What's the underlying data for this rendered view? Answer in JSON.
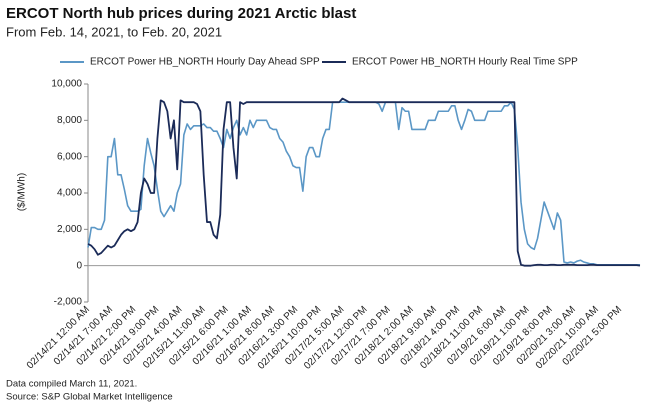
{
  "chart_data": {
    "type": "line",
    "title": "ERCOT North hub prices during 2021 Arctic blast",
    "subtitle": "From Feb. 14, 2021, to Feb. 20, 2021",
    "y_label": "($/MWh)",
    "notes": [
      "Data compiled March 11, 2021.",
      "Source: S&P Global Market Intelligence"
    ],
    "legend": "top",
    "grid": false,
    "ylim": [
      -2000,
      10000
    ],
    "yticks": [
      {
        "value": -2000,
        "label": "-2,000"
      },
      0,
      {
        "value": 2000,
        "label": "2,000"
      },
      {
        "value": 4000,
        "label": "4,000"
      },
      {
        "value": 6000,
        "label": "6,000"
      },
      {
        "value": 8000,
        "label": "8,000"
      },
      {
        "value": 10000,
        "label": "10,000"
      }
    ],
    "categories": [
      "02/14/21 12:00 AM",
      null,
      null,
      null,
      null,
      null,
      null,
      "02/14/21 7:00 AM",
      null,
      null,
      null,
      null,
      null,
      null,
      "02/14/21 2:00 PM",
      null,
      null,
      null,
      null,
      null,
      null,
      "02/14/21 9:00 PM",
      null,
      null,
      null,
      null,
      null,
      null,
      "02/15/21 4:00 AM",
      null,
      null,
      null,
      null,
      null,
      null,
      "02/15/21 11:00 AM",
      null,
      null,
      null,
      null,
      null,
      null,
      "02/15/21 6:00 PM",
      null,
      null,
      null,
      null,
      null,
      null,
      "02/16/21 1:00 AM",
      null,
      null,
      null,
      null,
      null,
      null,
      "02/16/21 8:00 AM",
      null,
      null,
      null,
      null,
      null,
      null,
      "02/16/21 3:00 PM",
      null,
      null,
      null,
      null,
      null,
      null,
      "02/16/21 10:00 PM",
      null,
      null,
      null,
      null,
      null,
      null,
      "02/17/21 5:00 AM",
      null,
      null,
      null,
      null,
      null,
      null,
      "02/17/21 12:00 PM",
      null,
      null,
      null,
      null,
      null,
      null,
      "02/17/21 7:00 PM",
      null,
      null,
      null,
      null,
      null,
      null,
      "02/18/21 2:00 AM",
      null,
      null,
      null,
      null,
      null,
      null,
      "02/18/21 9:00 AM",
      null,
      null,
      null,
      null,
      null,
      null,
      "02/18/21 4:00 PM",
      null,
      null,
      null,
      null,
      null,
      null,
      "02/18/21 11:00 PM",
      null,
      null,
      null,
      null,
      null,
      null,
      "02/19/21 6:00 AM",
      null,
      null,
      null,
      null,
      null,
      null,
      "02/19/21 1:00 PM",
      null,
      null,
      null,
      null,
      null,
      null,
      "02/19/21 8:00 PM",
      null,
      null,
      null,
      null,
      null,
      null,
      "02/20/21 3:00 AM",
      null,
      null,
      null,
      null,
      null,
      null,
      "02/20/21 10:00 AM",
      null,
      null,
      null,
      null,
      null,
      null,
      "02/20/21 5:00 PM",
      null,
      null,
      null,
      null,
      null,
      null
    ],
    "series": [
      {
        "name": "ERCOT Power HB_NORTH Hourly Day Ahead SPP",
        "color": "#5b97c6",
        "values": [
          1000,
          2100,
          2100,
          2000,
          2000,
          2500,
          6000,
          6000,
          7000,
          5000,
          5000,
          4200,
          3300,
          3000,
          3000,
          3000,
          3100,
          5500,
          7000,
          6200,
          5500,
          4200,
          3000,
          2700,
          3000,
          3300,
          3000,
          4000,
          4500,
          7200,
          7800,
          7500,
          7700,
          7700,
          7700,
          7800,
          7600,
          7600,
          7400,
          7400,
          7000,
          6500,
          7500,
          7000,
          7600,
          8000,
          7200,
          7600,
          7200,
          8000,
          7600,
          8000,
          8000,
          8000,
          8000,
          7600,
          7500,
          7500,
          7000,
          6800,
          6300,
          6000,
          5500,
          5400,
          5400,
          4100,
          6000,
          6500,
          6500,
          6000,
          6000,
          7000,
          7500,
          7500,
          9000,
          9000,
          9000,
          9000,
          9000,
          9000,
          9000,
          9000,
          9000,
          9000,
          9000,
          9000,
          9000,
          9000,
          8900,
          8500,
          9000,
          9000,
          9000,
          9000,
          7500,
          8700,
          8500,
          8500,
          7500,
          7500,
          7500,
          7500,
          7500,
          8000,
          8000,
          8000,
          8500,
          8500,
          8500,
          8500,
          8800,
          8800,
          8000,
          7500,
          8000,
          8600,
          8500,
          8000,
          8000,
          8000,
          8000,
          8500,
          8500,
          8500,
          8500,
          8500,
          8800,
          8800,
          9000,
          8600,
          6500,
          3500,
          2000,
          1200,
          1000,
          900,
          1500,
          2500,
          3500,
          3000,
          2500,
          2000,
          2900,
          2500,
          200,
          150,
          200,
          150,
          250,
          300,
          200,
          150,
          100,
          100,
          50,
          50,
          50,
          50,
          50,
          50,
          50,
          50,
          50,
          50,
          50,
          50,
          50,
          50
        ]
      },
      {
        "name": "ERCOT Power HB_NORTH Hourly Real Time SPP",
        "color": "#1b2b58",
        "values": [
          1200,
          1100,
          900,
          600,
          700,
          900,
          1100,
          1000,
          1100,
          1400,
          1700,
          1900,
          2000,
          1900,
          2000,
          2400,
          4000,
          4800,
          4500,
          4000,
          4000,
          7000,
          9100,
          9000,
          8500,
          7000,
          8000,
          5300,
          9100,
          9000,
          9000,
          9000,
          9000,
          8900,
          8500,
          5000,
          2400,
          2400,
          1700,
          1500,
          2800,
          7500,
          9000,
          9000,
          6500,
          4800,
          9000,
          8900,
          9000,
          9000,
          9000,
          9000,
          9000,
          9000,
          9000,
          9000,
          9000,
          9000,
          9000,
          9000,
          9000,
          9000,
          9000,
          9000,
          9000,
          9000,
          9000,
          9000,
          9000,
          9000,
          9000,
          9000,
          9000,
          9000,
          9000,
          9000,
          9000,
          9200,
          9100,
          9000,
          9000,
          9000,
          9000,
          9000,
          9000,
          9000,
          9000,
          9000,
          9000,
          9000,
          9000,
          9000,
          9000,
          9000,
          9000,
          9000,
          9000,
          9000,
          9000,
          9000,
          9000,
          9000,
          9000,
          9000,
          9000,
          9000,
          9000,
          9000,
          9000,
          9000,
          9000,
          9000,
          9000,
          9000,
          9000,
          9000,
          9000,
          9000,
          9000,
          9000,
          9000,
          9000,
          9000,
          9000,
          9000,
          9000,
          9000,
          9000,
          9000,
          9000,
          800,
          50,
          0,
          0,
          0,
          30,
          50,
          50,
          30,
          30,
          50,
          50,
          30,
          30,
          50,
          50,
          50,
          50,
          30,
          30,
          30,
          30,
          50,
          50,
          30,
          30,
          30,
          30,
          30,
          30,
          30,
          30,
          30,
          30,
          30,
          30,
          30,
          0
        ]
      }
    ]
  }
}
